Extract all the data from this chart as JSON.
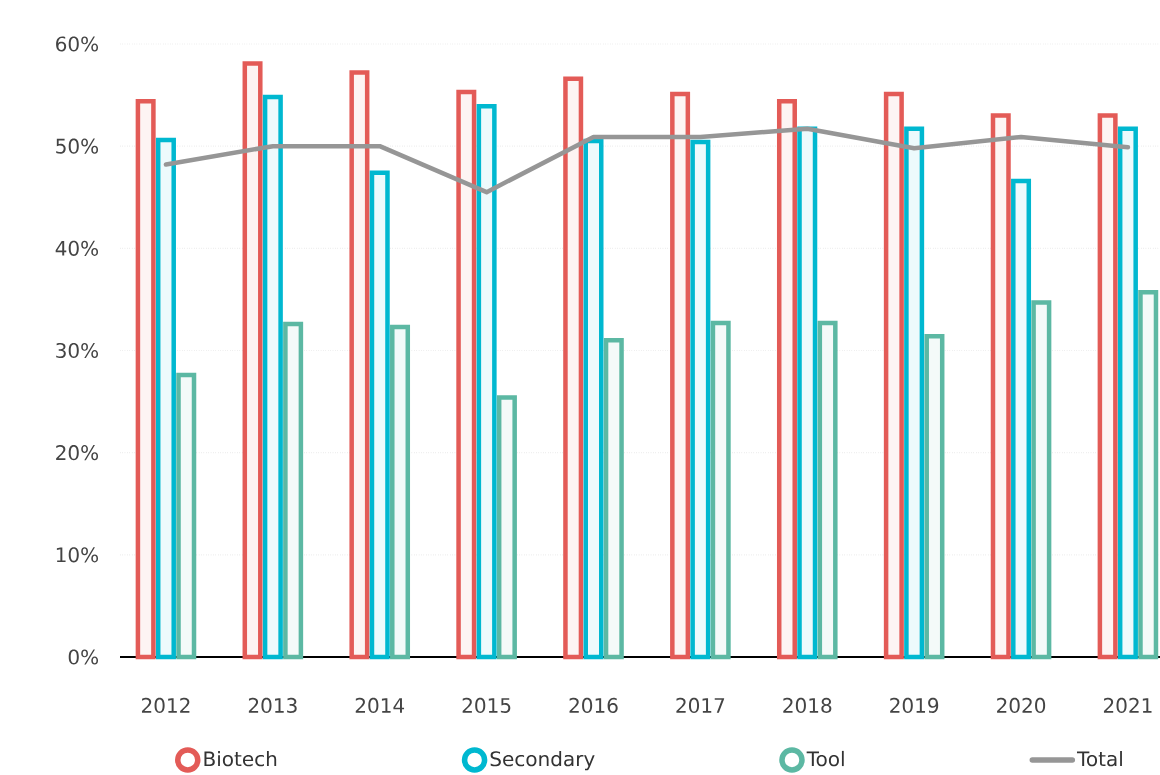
{
  "chart_data": {
    "type": "bar",
    "categories": [
      "2012",
      "2013",
      "2014",
      "2015",
      "2016",
      "2017",
      "2018",
      "2019",
      "2020",
      "2021"
    ],
    "series": [
      {
        "name": "Biotech",
        "color": "#e35b57",
        "values": [
          54.4,
          58.1,
          57.2,
          55.3,
          56.6,
          55.1,
          54.4,
          55.1,
          53.0,
          53.0
        ]
      },
      {
        "name": "Secondary",
        "color": "#00b8d0",
        "values": [
          50.6,
          54.8,
          47.4,
          53.9,
          50.5,
          50.4,
          51.7,
          51.7,
          46.6,
          51.7
        ]
      },
      {
        "name": "Tool",
        "color": "#5cb8a3",
        "values": [
          27.6,
          32.6,
          32.3,
          25.4,
          31.0,
          32.7,
          32.7,
          31.4,
          34.7,
          35.7
        ]
      },
      {
        "name": "Total",
        "type": "line",
        "color": "#969696",
        "values": [
          48.2,
          50.0,
          50.0,
          45.5,
          50.9,
          50.9,
          51.7,
          49.8,
          50.9,
          49.9
        ]
      }
    ],
    "ylim": [
      0,
      60
    ],
    "yticks": [
      {
        "value": 0,
        "label": "0%"
      },
      {
        "value": 10,
        "label": "10%"
      },
      {
        "value": 20,
        "label": "20%"
      },
      {
        "value": 30,
        "label": "30%"
      },
      {
        "value": 40,
        "label": "40%"
      },
      {
        "value": 50,
        "label": "50%"
      },
      {
        "value": 60,
        "label": "60%"
      }
    ],
    "grid": "y",
    "legend": "bottom"
  }
}
